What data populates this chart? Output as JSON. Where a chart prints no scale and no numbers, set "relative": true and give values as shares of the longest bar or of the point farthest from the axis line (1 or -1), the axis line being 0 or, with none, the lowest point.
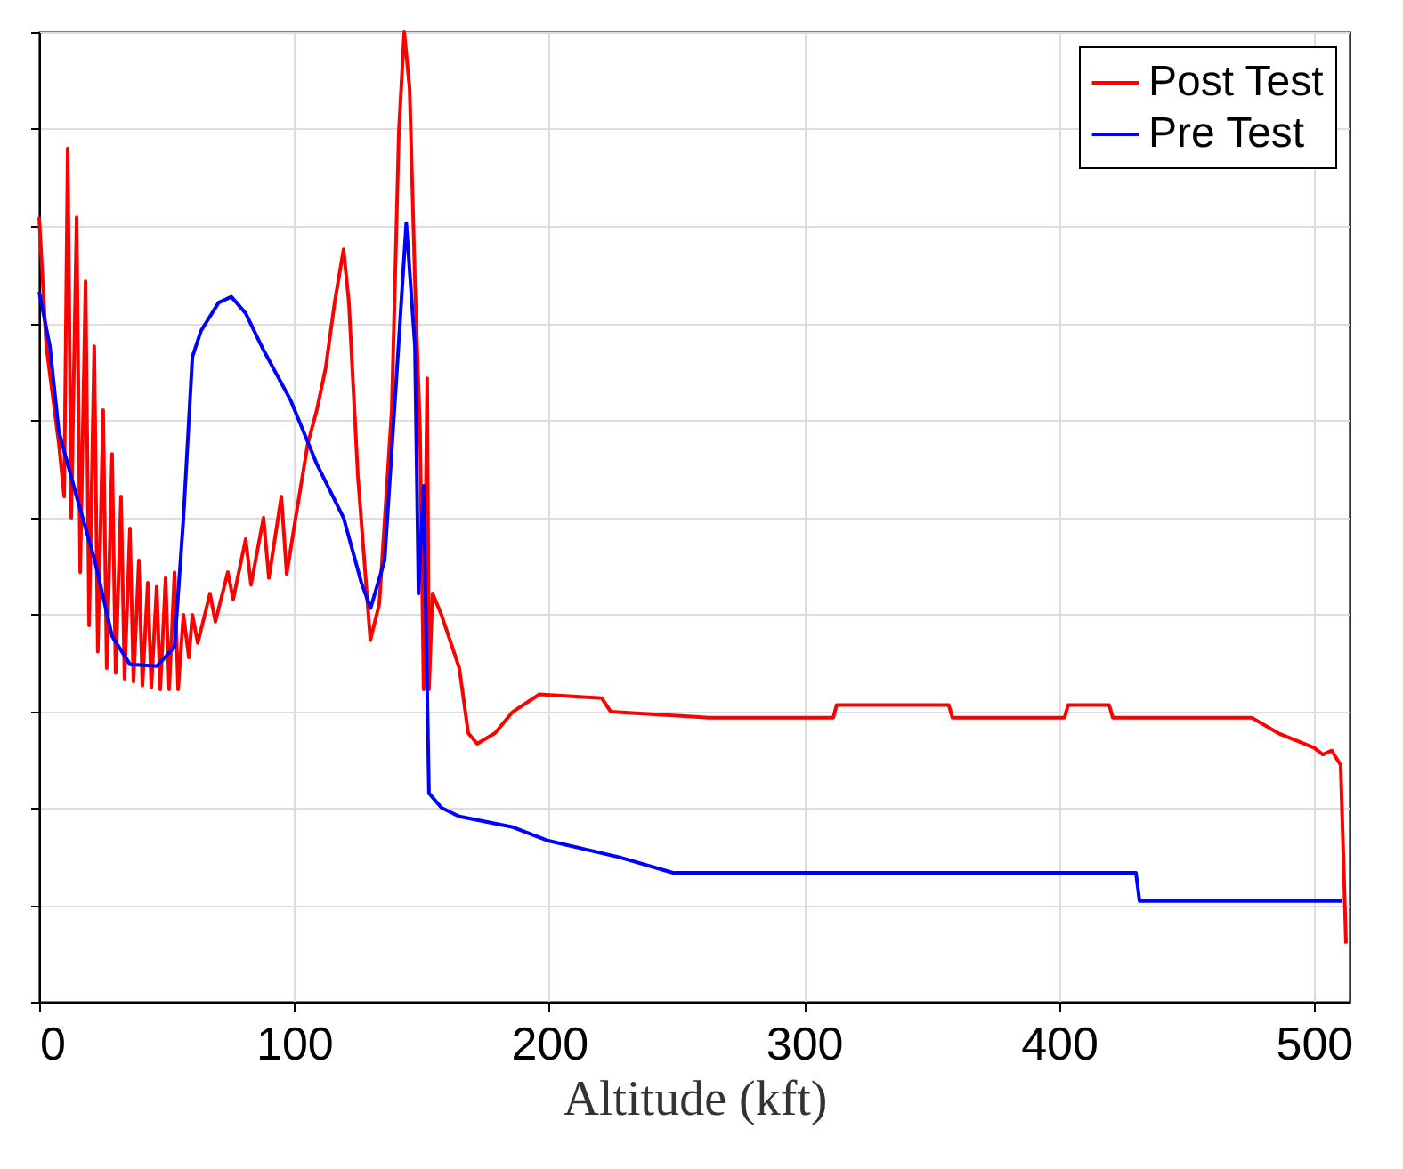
{
  "chart_data": {
    "type": "line",
    "relative": true,
    "xlabel": "Altitude (kft)",
    "xlim": [
      0,
      514
    ],
    "xticks": [
      0,
      100,
      200,
      300,
      400,
      500
    ],
    "grid": true,
    "legend": "top right",
    "line_style": "solid",
    "marker": "none",
    "series": [
      {
        "name": "Post Test",
        "color": "#ff0000",
        "x": [
          0,
          2.8,
          7.7,
          9.8,
          11.2,
          12.6,
          14.7,
          16.1,
          18.2,
          19.6,
          21.6,
          23.0,
          25.1,
          26.5,
          28.6,
          30.0,
          32.1,
          33.5,
          35.6,
          37.0,
          39.1,
          40.5,
          42.6,
          44.0,
          46.1,
          47.5,
          49.6,
          51.0,
          53.1,
          54.5,
          56.6,
          58.7,
          60.1,
          62.2,
          67.0,
          69.1,
          74.0,
          76.1,
          81.0,
          83.1,
          88.0,
          90.1,
          95.0,
          97.1,
          100.6,
          105.4,
          108.9,
          112.4,
          115.9,
          119.4,
          121.5,
          125.0,
          129.9,
          133.4,
          138.3,
          141.1,
          143.2,
          145.3,
          147.4,
          149.4,
          150.8,
          152.2,
          152.9,
          154.3,
          157.8,
          164.8,
          168.3,
          171.8,
          178.8,
          185.8,
          196.2,
          220.7,
          224.2,
          262.6,
          311.5,
          312.8,
          356.8,
          358.2,
          402.2,
          403.6,
          419.7,
          421.1,
          475.6,
          486.0,
          500.0,
          503.5,
          507.0,
          510.5,
          512.6
        ],
        "values": [
          0.809,
          0.676,
          0.576,
          0.521,
          0.88,
          0.499,
          0.809,
          0.443,
          0.743,
          0.388,
          0.676,
          0.361,
          0.61,
          0.344,
          0.565,
          0.339,
          0.521,
          0.333,
          0.488,
          0.33,
          0.455,
          0.326,
          0.432,
          0.324,
          0.428,
          0.322,
          0.437,
          0.322,
          0.443,
          0.322,
          0.399,
          0.355,
          0.399,
          0.37,
          0.421,
          0.392,
          0.443,
          0.415,
          0.477,
          0.43,
          0.499,
          0.437,
          0.521,
          0.441,
          0.499,
          0.576,
          0.61,
          0.654,
          0.721,
          0.776,
          0.721,
          0.543,
          0.373,
          0.41,
          0.61,
          0.898,
          1,
          0.942,
          0.743,
          0.588,
          0.322,
          0.643,
          0.322,
          0.421,
          0.399,
          0.344,
          0.277,
          0.266,
          0.277,
          0.299,
          0.317,
          0.313,
          0.299,
          0.293,
          0.293,
          0.306,
          0.306,
          0.293,
          0.293,
          0.306,
          0.306,
          0.293,
          0.293,
          0.277,
          0.262,
          0.255,
          0.259,
          0.244,
          0.06
        ]
      },
      {
        "name": "Pre Test",
        "color": "#0000ff",
        "x": [
          0,
          4.2,
          7.7,
          14.7,
          21.8,
          28.6,
          35.6,
          46.1,
          53.1,
          56.6,
          60.1,
          63.5,
          70.4,
          75.4,
          81,
          88,
          98.5,
          109,
          119.4,
          126.4,
          130,
          135.5,
          140.4,
          144,
          147.4,
          148.8,
          150.8,
          152.9,
          157.8,
          164.8,
          185.8,
          199.7,
          227.7,
          248.6,
          430.2,
          431.6,
          511
        ],
        "values": [
          0.732,
          0.676,
          0.588,
          0.521,
          0.455,
          0.377,
          0.348,
          0.346,
          0.366,
          0.499,
          0.665,
          0.692,
          0.721,
          0.727,
          0.71,
          0.672,
          0.621,
          0.554,
          0.499,
          0.432,
          0.406,
          0.455,
          0.654,
          0.803,
          0.676,
          0.421,
          0.532,
          0.215,
          0.2,
          0.191,
          0.18,
          0.166,
          0.149,
          0.133,
          0.133,
          0.104,
          0.104
        ]
      }
    ]
  }
}
